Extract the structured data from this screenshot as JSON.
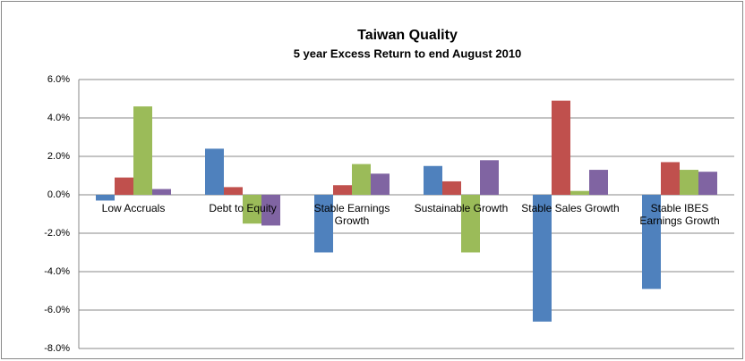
{
  "chart_data": {
    "type": "bar",
    "title": "Taiwan Quality",
    "subtitle": "5 year Excess Return to end August 2010",
    "categories": [
      "Low Accruals",
      "Debt to Equity",
      "Stable Earnings Growth",
      "Sustainable Growth",
      "Stable Sales Growth",
      "Stable IBES Earnings Growth"
    ],
    "series": [
      {
        "color": "#4f81bd",
        "values": [
          -0.3,
          2.4,
          -3.0,
          1.5,
          -6.6,
          -4.9
        ]
      },
      {
        "color": "#c0504d",
        "values": [
          0.9,
          0.4,
          0.5,
          0.7,
          4.9,
          1.7
        ]
      },
      {
        "color": "#9bbb59",
        "values": [
          4.6,
          -1.5,
          1.6,
          -3.0,
          0.2,
          1.3
        ]
      },
      {
        "color": "#8064a2",
        "values": [
          0.3,
          -1.6,
          1.1,
          1.8,
          1.3,
          1.2
        ]
      }
    ],
    "ylim": [
      -8,
      6
    ],
    "yticks": [
      {
        "value": -8,
        "label": "-8.0%"
      },
      {
        "value": -6,
        "label": "-6.0%"
      },
      {
        "value": -4,
        "label": "-4.0%"
      },
      {
        "value": -2,
        "label": "-2.0%"
      },
      {
        "value": 0,
        "label": "0.0%"
      },
      {
        "value": 2,
        "label": "2.0%"
      },
      {
        "value": 4,
        "label": "4.0%"
      },
      {
        "value": 6,
        "label": "6.0%"
      }
    ],
    "grid": true
  }
}
